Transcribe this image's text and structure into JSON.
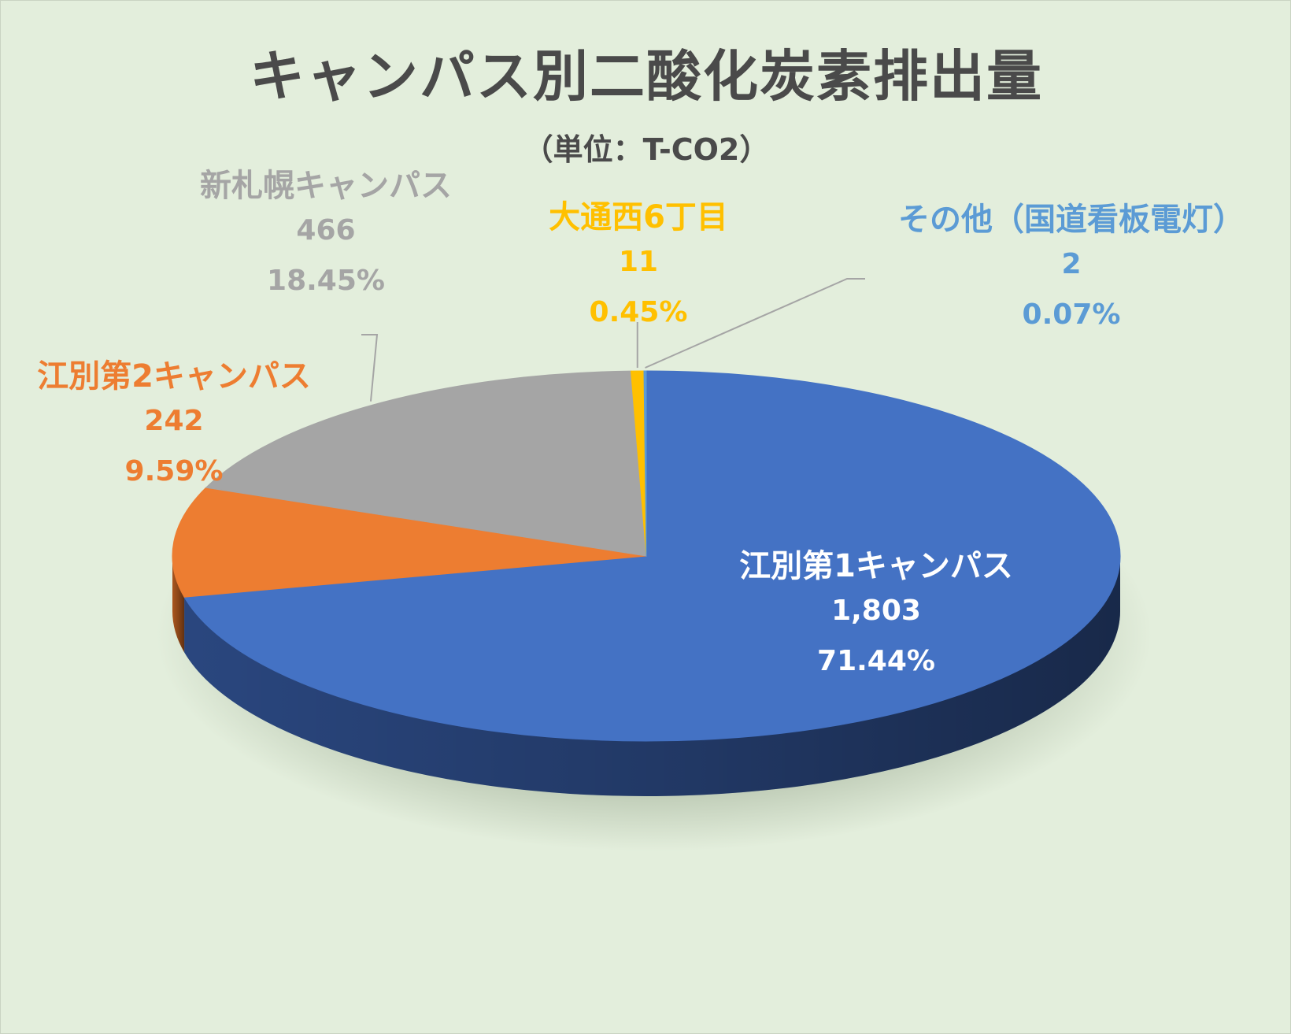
{
  "chart_data": {
    "type": "pie",
    "title": "キャンパス別二酸化炭素排出量",
    "subtitle": "（単位：T-CO2）",
    "slices": [
      {
        "name": "江別第1キャンパス",
        "value": 1803,
        "value_label": "1,803",
        "percent_label": "71.44%",
        "color": "#4472c4",
        "side_color": "#2c4a85",
        "label_color": "#ffffff"
      },
      {
        "name": "江別第2キャンパス",
        "value": 242,
        "value_label": "242",
        "percent_label": "9.59%",
        "color": "#ed7d31",
        "side_color": "#b35a1f",
        "label_color": "#ed7d31"
      },
      {
        "name": "新札幌キャンパス",
        "value": 466,
        "value_label": "466",
        "percent_label": "18.45%",
        "color": "#a5a5a5",
        "side_color": "#7a7a7a",
        "label_color": "#a5a5a5"
      },
      {
        "name": "大通西6丁目",
        "value": 11,
        "value_label": "11",
        "percent_label": "0.45%",
        "color": "#ffc000",
        "side_color": "#c79500",
        "label_color": "#ffc000"
      },
      {
        "name": "その他（国道看板電灯）",
        "value": 2,
        "value_label": "2",
        "percent_label": "0.07%",
        "color": "#5b9bd5",
        "side_color": "#3e73a3",
        "label_color": "#5b9bd5"
      }
    ],
    "legend": "none",
    "style": "3d-pie"
  }
}
